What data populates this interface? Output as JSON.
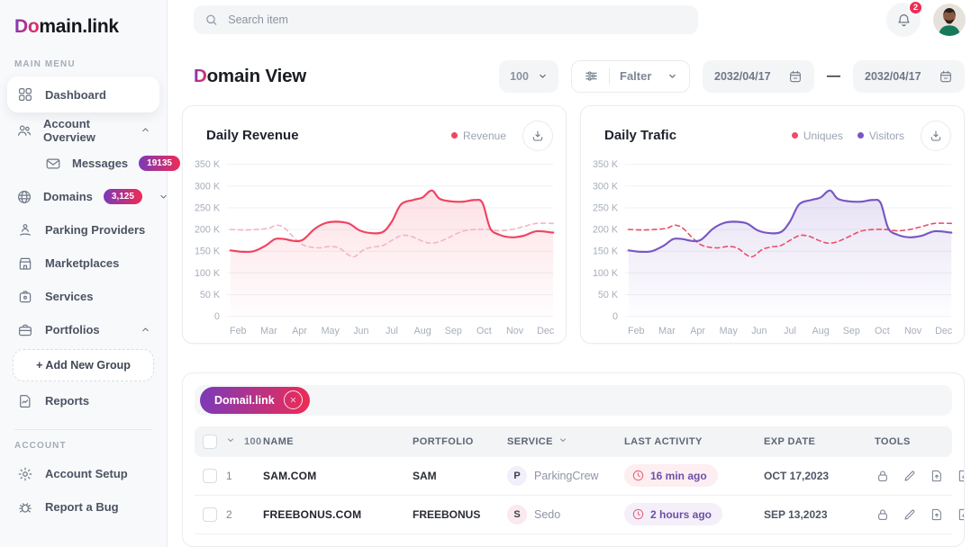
{
  "colors": {
    "accent_from": "#7a3ab9",
    "accent_to": "#ef2b55",
    "badge_red": "#ef2b55"
  },
  "brand": {
    "logo_accent": "Do",
    "logo_rest": "main.link"
  },
  "sidebar": {
    "main_menu_label": "MAIN MENU",
    "account_label": "ACCOUNT",
    "items": [
      {
        "label": "Dashboard"
      },
      {
        "label": "Account Overview"
      },
      {
        "label": "Messages",
        "badge": "19135"
      },
      {
        "label": "Domains",
        "badge": "3,125"
      },
      {
        "label": "Parking Providers"
      },
      {
        "label": "Marketplaces"
      },
      {
        "label": "Services"
      },
      {
        "label": "Portfolios"
      },
      {
        "label": "+  Add New Group"
      },
      {
        "label": "Reports"
      },
      {
        "label": "Account Setup"
      },
      {
        "label": "Report a Bug"
      }
    ]
  },
  "topbar": {
    "search_placeholder": "Search item",
    "notification_count": "2"
  },
  "page": {
    "title_accent": "D",
    "title_rest": "omain View"
  },
  "controls": {
    "page_size": "100",
    "filter_label": "Falter",
    "date_from": "2032/04/17",
    "date_to": "2032/04/17",
    "range_separator": "—"
  },
  "chart_data": [
    {
      "type": "line",
      "title": "Daily Revenue",
      "xlabel": "",
      "ylabel": "",
      "grid": true,
      "legend_position": "top-right",
      "legend": [
        {
          "label": "Revenue",
          "color": "#f0435f"
        }
      ],
      "ylim": [
        0,
        350
      ],
      "xlim": [
        1.75,
        12.25
      ],
      "y_ticks": [
        [
          350,
          "350 K"
        ],
        [
          300,
          "300 K"
        ],
        [
          250,
          "250 K"
        ],
        [
          200,
          "200 K"
        ],
        [
          150,
          "150 K"
        ],
        [
          100,
          "100 K"
        ],
        [
          50,
          "50 K"
        ],
        [
          0,
          "0"
        ]
      ],
      "x_ticks": [
        [
          2,
          "Feb"
        ],
        [
          3,
          "Mar"
        ],
        [
          4,
          "Apr"
        ],
        [
          5,
          "May"
        ],
        [
          6,
          "Jun"
        ],
        [
          7,
          "Jul"
        ],
        [
          8,
          "Aug"
        ],
        [
          9,
          "Sep"
        ],
        [
          10,
          "Oct"
        ],
        [
          11,
          "Nov"
        ],
        [
          12,
          "Dec"
        ]
      ],
      "units": "K",
      "series": [
        {
          "name": "Revenue",
          "color": "#f0435f",
          "dash": false,
          "fill": true,
          "fill_opacity": 0.16,
          "points": [
            [
              1.75,
              152
            ],
            [
              2.1,
              149
            ],
            [
              2.5,
              150
            ],
            [
              2.9,
              163
            ],
            [
              3.2,
              178
            ],
            [
              3.5,
              178
            ],
            [
              3.8,
              174
            ],
            [
              4.1,
              176
            ],
            [
              4.5,
              202
            ],
            [
              4.85,
              215
            ],
            [
              5.2,
              218
            ],
            [
              5.6,
              214
            ],
            [
              5.95,
              198
            ],
            [
              6.3,
              192
            ],
            [
              6.7,
              194
            ],
            [
              7.0,
              218
            ],
            [
              7.3,
              258
            ],
            [
              7.7,
              268
            ],
            [
              8.0,
              274
            ],
            [
              8.3,
              290
            ],
            [
              8.55,
              271
            ],
            [
              8.9,
              265
            ],
            [
              9.3,
              264
            ],
            [
              9.7,
              268
            ],
            [
              9.95,
              261
            ],
            [
              10.2,
              203
            ],
            [
              10.5,
              188
            ],
            [
              10.9,
              182
            ],
            [
              11.3,
              186
            ],
            [
              11.7,
              196
            ],
            [
              12.25,
              193
            ]
          ]
        },
        {
          "name": "",
          "color": "#f6b3c0",
          "dash": true,
          "fill": false,
          "points": [
            [
              1.75,
              200
            ],
            [
              2.2,
              199
            ],
            [
              2.6,
              200
            ],
            [
              3.0,
              203
            ],
            [
              3.25,
              210
            ],
            [
              3.5,
              204
            ],
            [
              3.8,
              183
            ],
            [
              4.1,
              165
            ],
            [
              4.4,
              159
            ],
            [
              4.7,
              158
            ],
            [
              5.0,
              161
            ],
            [
              5.3,
              157
            ],
            [
              5.6,
              141
            ],
            [
              5.8,
              138
            ],
            [
              6.1,
              154
            ],
            [
              6.4,
              160
            ],
            [
              6.7,
              163
            ],
            [
              7.0,
              175
            ],
            [
              7.3,
              186
            ],
            [
              7.6,
              185
            ],
            [
              7.9,
              176
            ],
            [
              8.2,
              169
            ],
            [
              8.5,
              171
            ],
            [
              8.9,
              183
            ],
            [
              9.3,
              196
            ],
            [
              9.7,
              200
            ],
            [
              10.1,
              200
            ],
            [
              10.5,
              197
            ],
            [
              10.9,
              200
            ],
            [
              11.3,
              207
            ],
            [
              11.7,
              214
            ],
            [
              12.25,
              214
            ]
          ]
        }
      ]
    },
    {
      "type": "line",
      "title": "Daily Trafic",
      "xlabel": "",
      "ylabel": "",
      "grid": true,
      "legend_position": "top-right",
      "legend": [
        {
          "label": "Uniques",
          "color": "#ee4b66"
        },
        {
          "label": "Visitors",
          "color": "#7857c2"
        }
      ],
      "ylim": [
        0,
        350
      ],
      "xlim": [
        1.75,
        12.25
      ],
      "y_ticks": [
        [
          350,
          "350 K"
        ],
        [
          300,
          "300 K"
        ],
        [
          250,
          "250 K"
        ],
        [
          200,
          "200 K"
        ],
        [
          150,
          "150 K"
        ],
        [
          100,
          "100 K"
        ],
        [
          50,
          "50 K"
        ],
        [
          0,
          "0"
        ]
      ],
      "x_ticks": [
        [
          2,
          "Feb"
        ],
        [
          3,
          "Mar"
        ],
        [
          4,
          "Apr"
        ],
        [
          5,
          "May"
        ],
        [
          6,
          "Jun"
        ],
        [
          7,
          "Jul"
        ],
        [
          8,
          "Aug"
        ],
        [
          9,
          "Sep"
        ],
        [
          10,
          "Oct"
        ],
        [
          11,
          "Nov"
        ],
        [
          12,
          "Dec"
        ]
      ],
      "units": "K",
      "series": [
        {
          "name": "Visitors",
          "color": "#7857c2",
          "dash": false,
          "fill": true,
          "fill_opacity": 0.18,
          "points": [
            [
              1.75,
              152
            ],
            [
              2.1,
              149
            ],
            [
              2.5,
              150
            ],
            [
              2.9,
              163
            ],
            [
              3.2,
              178
            ],
            [
              3.5,
              178
            ],
            [
              3.8,
              174
            ],
            [
              4.1,
              176
            ],
            [
              4.5,
              202
            ],
            [
              4.85,
              215
            ],
            [
              5.2,
              218
            ],
            [
              5.6,
              214
            ],
            [
              5.95,
              198
            ],
            [
              6.3,
              192
            ],
            [
              6.7,
              194
            ],
            [
              7.0,
              218
            ],
            [
              7.3,
              258
            ],
            [
              7.7,
              268
            ],
            [
              8.0,
              274
            ],
            [
              8.3,
              290
            ],
            [
              8.55,
              271
            ],
            [
              8.9,
              265
            ],
            [
              9.3,
              264
            ],
            [
              9.7,
              268
            ],
            [
              9.95,
              261
            ],
            [
              10.2,
              203
            ],
            [
              10.5,
              188
            ],
            [
              10.9,
              182
            ],
            [
              11.3,
              186
            ],
            [
              11.7,
              196
            ],
            [
              12.25,
              193
            ]
          ]
        },
        {
          "name": "Uniques",
          "color": "#ee4b66",
          "dash": true,
          "fill": false,
          "points": [
            [
              1.75,
              200
            ],
            [
              2.2,
              199
            ],
            [
              2.6,
              200
            ],
            [
              3.0,
              203
            ],
            [
              3.25,
              210
            ],
            [
              3.5,
              204
            ],
            [
              3.8,
              183
            ],
            [
              4.1,
              165
            ],
            [
              4.4,
              159
            ],
            [
              4.7,
              158
            ],
            [
              5.0,
              161
            ],
            [
              5.3,
              157
            ],
            [
              5.6,
              141
            ],
            [
              5.8,
              138
            ],
            [
              6.1,
              154
            ],
            [
              6.4,
              160
            ],
            [
              6.7,
              163
            ],
            [
              7.0,
              175
            ],
            [
              7.3,
              186
            ],
            [
              7.6,
              185
            ],
            [
              7.9,
              176
            ],
            [
              8.2,
              169
            ],
            [
              8.5,
              171
            ],
            [
              8.9,
              183
            ],
            [
              9.3,
              196
            ],
            [
              9.7,
              200
            ],
            [
              10.1,
              200
            ],
            [
              10.5,
              197
            ],
            [
              10.9,
              200
            ],
            [
              11.3,
              207
            ],
            [
              11.7,
              214
            ],
            [
              12.25,
              214
            ]
          ]
        }
      ]
    }
  ],
  "table": {
    "filter_chip": "Domail.link",
    "header": {
      "count": "100",
      "name": "NAME",
      "portfolio": "PORTFOLIO",
      "service": "SERVICE",
      "last_activity": "LAST ACTIVITY",
      "exp_date": "EXP DATE",
      "tools": "TOOLS"
    },
    "rows": [
      {
        "num": "1",
        "name": "SAM.COM",
        "portfolio": "SAM",
        "service_initial": "P",
        "service": "ParkingCrew",
        "service_bg": "#f2effa",
        "activity": "16 min ago",
        "activity_bg": "#fdeef1",
        "exp_date": "OCT 17,2023"
      },
      {
        "num": "2",
        "name": "FREEBONUS.COM",
        "portfolio": "FREEBONUS",
        "service_initial": "S",
        "service": "Sedo",
        "service_bg": "#fbe9ee",
        "activity": "2 hours ago",
        "activity_bg": "#f5effa",
        "exp_date": "SEP 13,2023"
      }
    ]
  }
}
